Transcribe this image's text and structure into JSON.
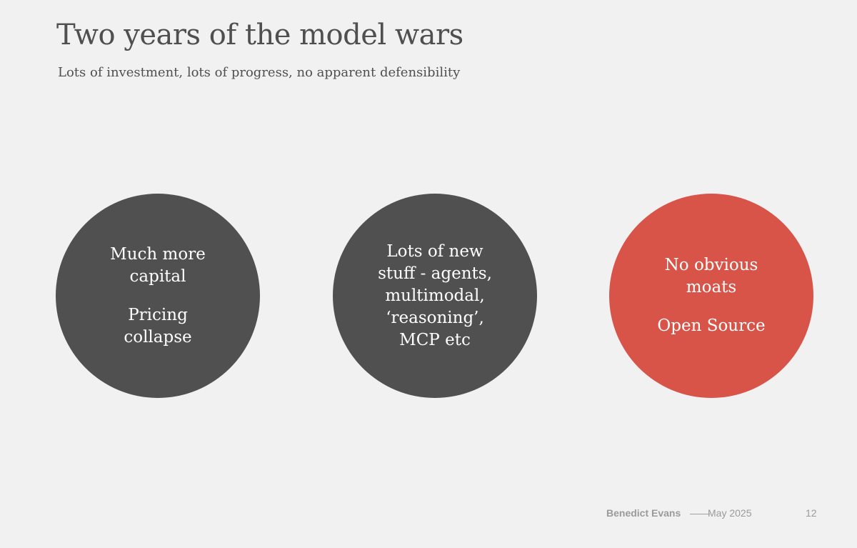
{
  "slide": {
    "title": "Two years of the model wars",
    "subtitle": "Lots of investment, lots of progress, no apparent defensibility"
  },
  "circles": [
    {
      "lines": [
        "Much more",
        "capital"
      ],
      "lines2": [
        "Pricing",
        "collapse"
      ],
      "color": "#505050"
    },
    {
      "lines": [
        "Lots of new",
        "stuff - agents,",
        "multimodal,",
        "‘reasoning’,",
        "MCP etc"
      ],
      "color": "#505050"
    },
    {
      "lines": [
        "No obvious",
        "moats"
      ],
      "lines2": [
        "Open Source"
      ],
      "color": "#d95448"
    }
  ],
  "footer": {
    "author": "Benedict Evans",
    "separator": "——",
    "date": "May 2025",
    "page": "12"
  }
}
